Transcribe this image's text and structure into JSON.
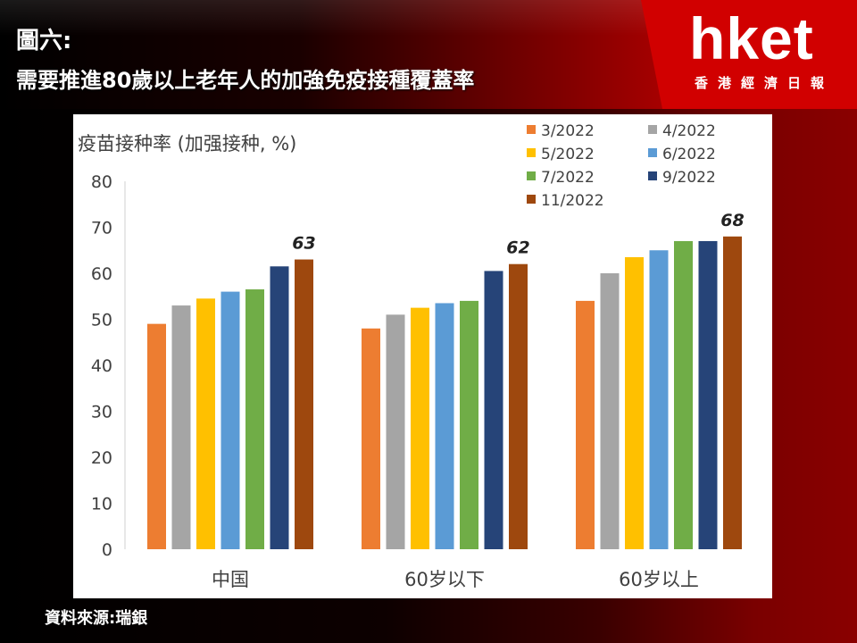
{
  "header": {
    "title": "圖六:",
    "subtitle": "需要推進80歲以上老年人的加強免疫接種覆蓋率",
    "logo_text": "hket",
    "logo_tagline": "香港經濟日報"
  },
  "source": "資料來源:瑞銀",
  "colors": {
    "header_red": "#c40000",
    "chart_background": "#ffffff"
  },
  "chart_data": {
    "type": "bar",
    "title": "疫苗接种率 (加强接种, %)",
    "categories": [
      "中国",
      "60岁以下",
      "60岁以上"
    ],
    "series": [
      {
        "name": "3/2022",
        "color": "#ED7D31",
        "values": [
          49,
          48,
          54
        ]
      },
      {
        "name": "4/2022",
        "color": "#A5A5A5",
        "values": [
          53,
          51,
          60
        ]
      },
      {
        "name": "5/2022",
        "color": "#FFC000",
        "values": [
          54.5,
          52.5,
          63.5
        ]
      },
      {
        "name": "6/2022",
        "color": "#5B9BD5",
        "values": [
          56,
          53.5,
          65
        ]
      },
      {
        "name": "7/2022",
        "color": "#70AD47",
        "values": [
          56.5,
          54,
          67
        ]
      },
      {
        "name": "9/2022",
        "color": "#264478",
        "values": [
          61.5,
          60.5,
          67
        ]
      },
      {
        "name": "11/2022",
        "color": "#9E480E",
        "values": [
          63,
          62,
          68
        ]
      }
    ],
    "annotations": [
      "63",
      "62",
      "68"
    ],
    "ylim": [
      0,
      80
    ],
    "yticks": [
      0,
      10,
      20,
      30,
      40,
      50,
      60,
      70,
      80
    ],
    "grid": false,
    "legend_position": "top-right",
    "xlabel": "",
    "ylabel": ""
  }
}
